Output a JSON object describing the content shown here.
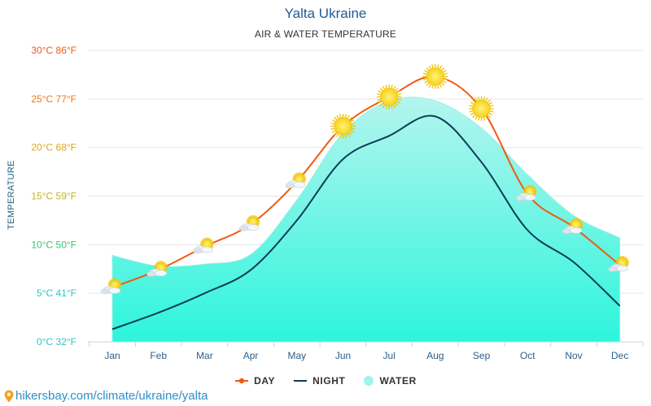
{
  "header": {
    "title": "Yalta Ukraine",
    "subtitle": "AIR & WATER TEMPERATURE"
  },
  "colors": {
    "day": "#f05a0f",
    "night": "#0d3c5a",
    "water_top": "#b4f5ee",
    "water_bottom": "#2df5dc"
  },
  "chart_data": {
    "type": "line",
    "title": "Yalta Ukraine",
    "subtitle": "AIR & WATER TEMPERATURE",
    "ylabel": "TEMPERATURE",
    "xlabel": "",
    "ylim": [
      0,
      30
    ],
    "categories": [
      "Jan",
      "Feb",
      "Mar",
      "Apr",
      "May",
      "Jun",
      "Jul",
      "Aug",
      "Sep",
      "Oct",
      "Nov",
      "Dec"
    ],
    "y_ticks": [
      {
        "value": 0,
        "label": "0°C 32°F",
        "color": "#2fc4c4"
      },
      {
        "value": 5,
        "label": "5°C 41°F",
        "color": "#2fc4c4"
      },
      {
        "value": 10,
        "label": "10°C 50°F",
        "color": "#33c86a"
      },
      {
        "value": 15,
        "label": "15°C 59°F",
        "color": "#c8b21d"
      },
      {
        "value": 20,
        "label": "20°C 68°F",
        "color": "#e0a81a"
      },
      {
        "value": 25,
        "label": "25°C 77°F",
        "color": "#ec7a16"
      },
      {
        "value": 30,
        "label": "30°C 86°F",
        "color": "#ec5a16"
      }
    ],
    "series": [
      {
        "name": "DAY",
        "values": [
          5.6,
          7.4,
          9.8,
          12.1,
          16.5,
          22.2,
          25.2,
          27.3,
          24.0,
          15.2,
          11.8,
          7.9
        ]
      },
      {
        "name": "NIGHT",
        "values": [
          1.3,
          3.0,
          5.0,
          7.4,
          12.5,
          18.8,
          21.2,
          23.2,
          18.5,
          11.5,
          8.2,
          3.7
        ]
      },
      {
        "name": "WATER",
        "values": [
          8.9,
          7.8,
          8.0,
          9.0,
          14.6,
          21.5,
          24.8,
          24.8,
          22.0,
          17.2,
          13.0,
          10.7
        ]
      }
    ],
    "weather_icons": [
      "cloudy-sun",
      "cloudy-sun",
      "cloudy-sun",
      "cloudy-sun",
      "cloudy-sun",
      "sun",
      "sun",
      "sun",
      "sun",
      "cloudy-sun",
      "cloudy-sun",
      "cloudy-sun"
    ]
  },
  "legend": {
    "day": "DAY",
    "night": "NIGHT",
    "water": "WATER"
  },
  "footer": {
    "url": "hikersbay.com/climate/ukraine/yalta"
  }
}
